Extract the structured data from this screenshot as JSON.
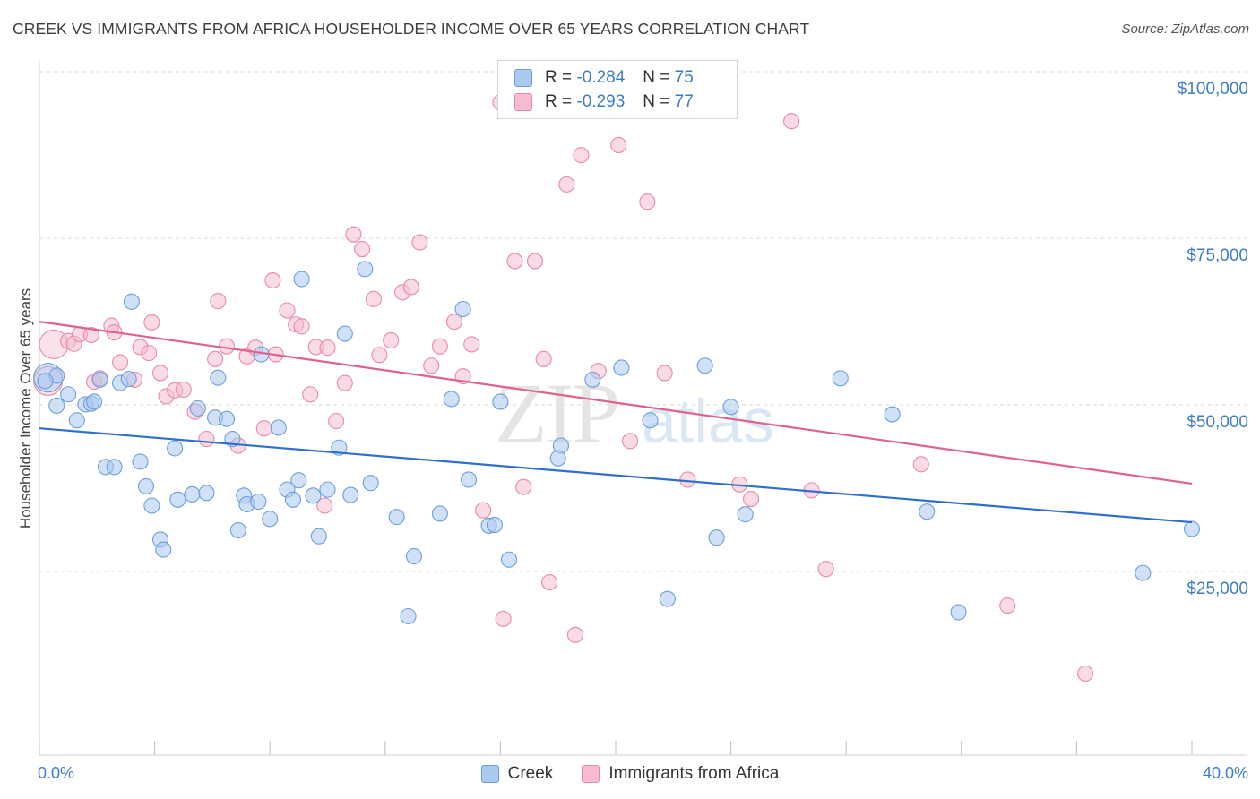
{
  "title": "CREEK VS IMMIGRANTS FROM AFRICA HOUSEHOLDER INCOME OVER 65 YEARS CORRELATION CHART",
  "source": "Source: ZipAtlas.com",
  "watermark": {
    "zip": "ZIP",
    "atlas": "atlas"
  },
  "colors": {
    "blue_fill": "#a9c9f0",
    "blue_stroke": "#6a9fdc",
    "blue_line": "#2f6fcf",
    "pink_fill": "#f6bccd",
    "pink_stroke": "#e88aa7",
    "pink_line": "#e0628c",
    "tick_label": "#3d7cc9",
    "grid": "#d9d9d9"
  },
  "legend": {
    "rows": [
      {
        "r_label": "R =",
        "r_value": "-0.284",
        "n_label": "N =",
        "n_value": "75"
      },
      {
        "r_label": "R =",
        "r_value": "-0.293",
        "n_label": "N =",
        "n_value": "77"
      }
    ]
  },
  "bottom_legend": [
    "Creek",
    "Immigrants from Africa"
  ],
  "chart_data": {
    "type": "scatter",
    "ylabel": "Householder Income Over 65 years",
    "xlim": [
      0,
      40
    ],
    "ylim": [
      0,
      105000
    ],
    "x_tick_labels": [
      "0.0%",
      "40.0%"
    ],
    "y_ticks": [
      25000,
      50000,
      75000,
      100000
    ],
    "y_tick_labels": [
      "$25,000",
      "$50,000",
      "$75,000",
      "$100,000"
    ],
    "grid": "horizontal dashed",
    "series": [
      {
        "name": "Creek",
        "color": "#a9c9f0",
        "trend": {
          "x": [
            0,
            40
          ],
          "y": [
            48900,
            34800
          ]
        },
        "points": [
          [
            0.3,
            56500
          ],
          [
            0.6,
            56800
          ],
          [
            0.6,
            52300
          ],
          [
            1.0,
            54000
          ],
          [
            1.3,
            50100
          ],
          [
            1.6,
            52500
          ],
          [
            1.8,
            52600
          ],
          [
            1.9,
            52900
          ],
          [
            2.1,
            56200
          ],
          [
            2.3,
            43100
          ],
          [
            2.6,
            43100
          ],
          [
            2.8,
            55700
          ],
          [
            3.1,
            56300
          ],
          [
            3.2,
            67900
          ],
          [
            3.5,
            43900
          ],
          [
            3.7,
            40200
          ],
          [
            3.9,
            37300
          ],
          [
            4.2,
            32200
          ],
          [
            4.3,
            30700
          ],
          [
            4.7,
            45900
          ],
          [
            4.8,
            38200
          ],
          [
            5.3,
            39000
          ],
          [
            5.5,
            51900
          ],
          [
            5.8,
            39200
          ],
          [
            6.1,
            50500
          ],
          [
            6.2,
            56500
          ],
          [
            6.5,
            50300
          ],
          [
            6.7,
            47300
          ],
          [
            6.9,
            33600
          ],
          [
            7.1,
            38800
          ],
          [
            7.2,
            37500
          ],
          [
            7.6,
            37900
          ],
          [
            7.7,
            60000
          ],
          [
            8.0,
            35300
          ],
          [
            8.3,
            49000
          ],
          [
            8.6,
            39700
          ],
          [
            8.8,
            38200
          ],
          [
            9.0,
            41100
          ],
          [
            9.1,
            71300
          ],
          [
            9.5,
            38800
          ],
          [
            9.7,
            32700
          ],
          [
            10.0,
            39700
          ],
          [
            10.4,
            46000
          ],
          [
            10.6,
            63100
          ],
          [
            10.8,
            38900
          ],
          [
            11.3,
            72800
          ],
          [
            11.5,
            40700
          ],
          [
            12.4,
            35600
          ],
          [
            12.8,
            20700
          ],
          [
            13.0,
            29700
          ],
          [
            13.9,
            36100
          ],
          [
            14.3,
            53300
          ],
          [
            14.7,
            66800
          ],
          [
            14.9,
            41200
          ],
          [
            15.6,
            34300
          ],
          [
            15.8,
            34400
          ],
          [
            16.0,
            52900
          ],
          [
            16.3,
            29200
          ],
          [
            18.1,
            46300
          ],
          [
            18.0,
            44400
          ],
          [
            19.2,
            56200
          ],
          [
            20.2,
            58000
          ],
          [
            21.2,
            50100
          ],
          [
            21.8,
            23300
          ],
          [
            23.1,
            58300
          ],
          [
            23.5,
            32500
          ],
          [
            24.0,
            52100
          ],
          [
            24.5,
            36000
          ],
          [
            27.8,
            56400
          ],
          [
            29.6,
            51000
          ],
          [
            30.8,
            36400
          ],
          [
            31.9,
            21300
          ],
          [
            38.3,
            27200
          ],
          [
            40.0,
            33800
          ],
          [
            0.2,
            56000
          ]
        ]
      },
      {
        "name": "Immigrants from Africa",
        "color": "#f6bccd",
        "trend": {
          "x": [
            0,
            40
          ],
          "y": [
            64900,
            40600
          ]
        },
        "points": [
          [
            0.3,
            56000
          ],
          [
            0.5,
            61500
          ],
          [
            1.0,
            62000
          ],
          [
            1.2,
            61600
          ],
          [
            1.4,
            63000
          ],
          [
            1.8,
            62900
          ],
          [
            1.9,
            55900
          ],
          [
            2.1,
            56400
          ],
          [
            2.5,
            64300
          ],
          [
            2.6,
            63300
          ],
          [
            2.8,
            58800
          ],
          [
            3.3,
            56200
          ],
          [
            3.5,
            61100
          ],
          [
            3.8,
            60200
          ],
          [
            3.9,
            64800
          ],
          [
            4.2,
            57200
          ],
          [
            4.4,
            53700
          ],
          [
            4.7,
            54600
          ],
          [
            5.0,
            54700
          ],
          [
            5.4,
            51400
          ],
          [
            5.8,
            47300
          ],
          [
            6.1,
            59300
          ],
          [
            6.2,
            68000
          ],
          [
            6.5,
            61200
          ],
          [
            6.9,
            46300
          ],
          [
            7.2,
            59700
          ],
          [
            7.5,
            61000
          ],
          [
            7.8,
            48900
          ],
          [
            8.1,
            71100
          ],
          [
            8.2,
            60000
          ],
          [
            8.6,
            66600
          ],
          [
            8.9,
            64500
          ],
          [
            9.1,
            64200
          ],
          [
            9.4,
            54000
          ],
          [
            9.6,
            61100
          ],
          [
            9.9,
            37300
          ],
          [
            10.0,
            61000
          ],
          [
            10.3,
            50000
          ],
          [
            10.6,
            55700
          ],
          [
            10.9,
            78000
          ],
          [
            11.2,
            75800
          ],
          [
            11.6,
            68300
          ],
          [
            11.8,
            59900
          ],
          [
            12.2,
            62100
          ],
          [
            12.6,
            69300
          ],
          [
            12.9,
            70100
          ],
          [
            13.2,
            76800
          ],
          [
            13.6,
            58300
          ],
          [
            13.9,
            61200
          ],
          [
            14.4,
            64900
          ],
          [
            14.7,
            56700
          ],
          [
            15.0,
            61500
          ],
          [
            15.4,
            36600
          ],
          [
            16.0,
            97800
          ],
          [
            16.1,
            20300
          ],
          [
            16.5,
            74000
          ],
          [
            16.8,
            40100
          ],
          [
            17.2,
            74000
          ],
          [
            17.5,
            59300
          ],
          [
            17.7,
            25800
          ],
          [
            18.3,
            85500
          ],
          [
            18.6,
            17900
          ],
          [
            18.8,
            89900
          ],
          [
            19.4,
            57500
          ],
          [
            20.1,
            91400
          ],
          [
            20.5,
            47000
          ],
          [
            21.1,
            82900
          ],
          [
            21.7,
            57200
          ],
          [
            22.5,
            41200
          ],
          [
            24.3,
            40500
          ],
          [
            24.7,
            38300
          ],
          [
            26.1,
            95000
          ],
          [
            26.8,
            39600
          ],
          [
            27.3,
            27800
          ],
          [
            30.6,
            43500
          ],
          [
            33.6,
            22300
          ],
          [
            36.3,
            12100
          ]
        ]
      }
    ]
  }
}
